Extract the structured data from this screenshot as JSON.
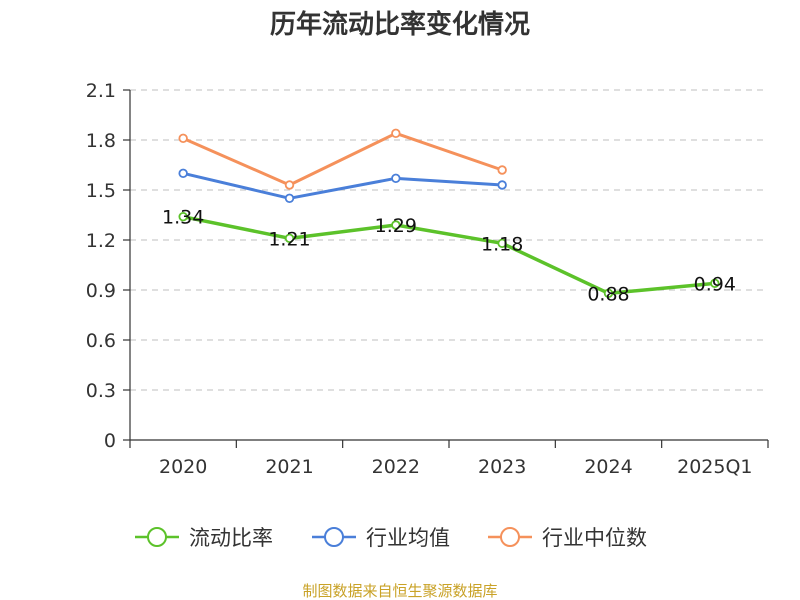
{
  "chart_data": {
    "type": "line",
    "title": "历年流动比率变化情况",
    "categories": [
      "2020",
      "2021",
      "2022",
      "2023",
      "2024",
      "2025Q1"
    ],
    "ylim": [
      0,
      2.1
    ],
    "yticks": [
      "0",
      "0.3",
      "0.6",
      "0.9",
      "1.2",
      "1.5",
      "1.8",
      "2.1"
    ],
    "grid": true,
    "legend_position": "bottom",
    "series": [
      {
        "name": "流动比率",
        "color": "#5cc22a",
        "values": [
          1.34,
          1.21,
          1.29,
          1.18,
          0.88,
          0.94
        ],
        "labels": [
          "1.34",
          "1.21",
          "1.29",
          "1.18",
          "0.88",
          "0.94"
        ]
      },
      {
        "name": "行业均值",
        "color": "#4a7fd9",
        "values": [
          1.6,
          1.45,
          1.57,
          1.53,
          null,
          null
        ]
      },
      {
        "name": "行业中位数",
        "color": "#f5915b",
        "values": [
          1.81,
          1.53,
          1.84,
          1.62,
          null,
          null
        ]
      }
    ]
  },
  "source": "制图数据来自恒生聚源数据库"
}
